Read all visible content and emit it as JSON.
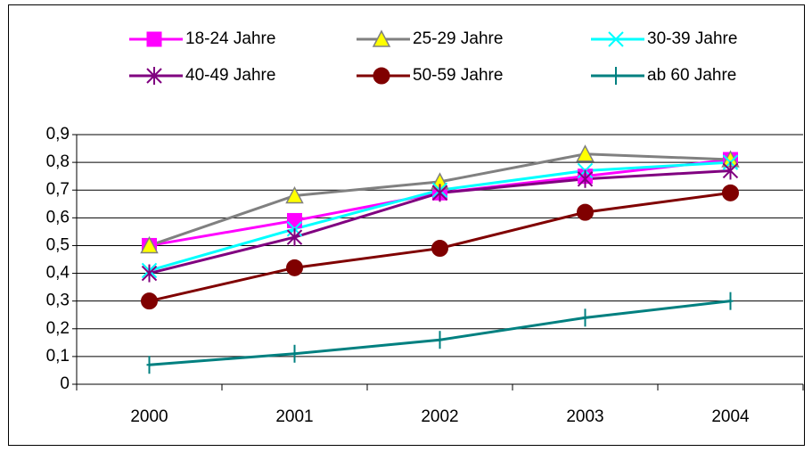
{
  "chart_data": {
    "type": "line",
    "categories": [
      "2000",
      "2001",
      "2002",
      "2003",
      "2004"
    ],
    "series": [
      {
        "name": "18-24 Jahre",
        "color": "#ff00ff",
        "marker": "square",
        "marker_color": "#ff00ff",
        "values": [
          0.5,
          0.59,
          0.69,
          0.75,
          0.81
        ]
      },
      {
        "name": "25-29 Jahre",
        "color": "#808080",
        "marker": "triangle",
        "marker_color": "#ffff00",
        "values": [
          0.5,
          0.68,
          0.73,
          0.83,
          0.81
        ]
      },
      {
        "name": "30-39 Jahre",
        "color": "#00ffff",
        "marker": "x",
        "marker_color": "#00ffff",
        "values": [
          0.41,
          0.56,
          0.7,
          0.77,
          0.8
        ]
      },
      {
        "name": "40-49 Jahre",
        "color": "#800080",
        "marker": "star",
        "marker_color": "#800080",
        "values": [
          0.4,
          0.53,
          0.69,
          0.74,
          0.77
        ]
      },
      {
        "name": "50-59 Jahre",
        "color": "#800000",
        "marker": "circle",
        "marker_color": "#800000",
        "values": [
          0.3,
          0.42,
          0.49,
          0.62,
          0.69
        ]
      },
      {
        "name": "ab 60 Jahre",
        "color": "#008080",
        "marker": "plus",
        "marker_color": "#008080",
        "values": [
          0.07,
          0.11,
          0.16,
          0.24,
          0.3
        ]
      }
    ],
    "ylim": [
      0,
      0.9
    ],
    "yticks": [
      0,
      {
        "value": 0.1,
        "label": "0,1"
      },
      {
        "value": 0.2,
        "label": "0,2"
      },
      {
        "value": 0.3,
        "label": "0,3"
      },
      {
        "value": 0.4,
        "label": "0,4"
      },
      {
        "value": 0.5,
        "label": "0,5"
      },
      {
        "value": 0.6,
        "label": "0,6"
      },
      {
        "value": 0.7,
        "label": "0,7"
      },
      {
        "value": 0.8,
        "label": "0,8"
      },
      {
        "value": 0.9,
        "label": "0,9"
      }
    ],
    "grid": true,
    "legend": "top"
  }
}
